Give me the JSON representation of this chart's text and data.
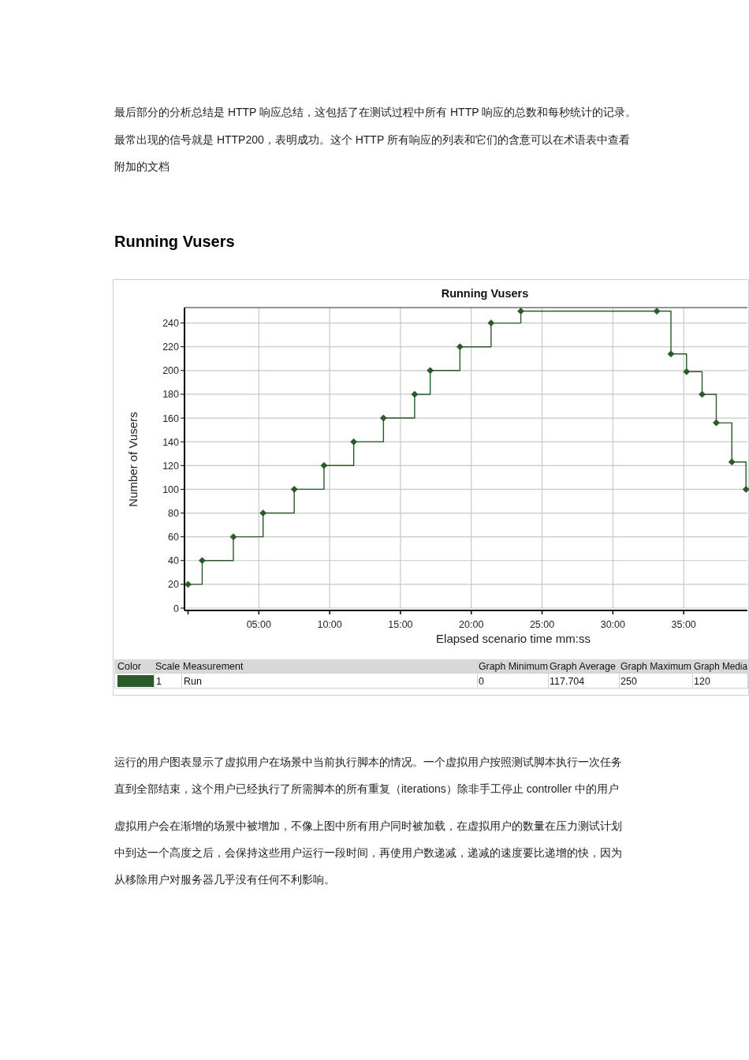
{
  "chart_data": {
    "type": "step",
    "title": "Running Vusers",
    "xlabel": "Elapsed scenario time mm:ss",
    "ylabel": "Number of Vusers",
    "x": [
      0,
      1.0,
      3.2,
      5.3,
      7.5,
      9.6,
      11.7,
      13.8,
      16.0,
      17.1,
      19.2,
      21.4,
      23.5,
      33.1,
      34.1,
      35.2,
      36.3,
      37.3,
      38.4,
      39.4
    ],
    "series": [
      {
        "name": "Run",
        "color": "#2a5a2a",
        "values": [
          20,
          40,
          60,
          80,
          100,
          120,
          140,
          160,
          180,
          200,
          220,
          240,
          250,
          250,
          214,
          199,
          180,
          156,
          123,
          100
        ]
      }
    ],
    "xlim": [
      -0.25,
      39.5
    ],
    "ylim": [
      0,
      253
    ],
    "xticks": [
      {
        "value": 0,
        "label": null
      },
      {
        "value": 5,
        "label": "05:00"
      },
      {
        "value": 10,
        "label": "10:00"
      },
      {
        "value": 15,
        "label": "15:00"
      },
      {
        "value": 20,
        "label": "20:00"
      },
      {
        "value": 25,
        "label": "25:00"
      },
      {
        "value": 30,
        "label": "30:00"
      },
      {
        "value": 35,
        "label": "35:00"
      }
    ],
    "yticks": [
      0,
      20,
      40,
      60,
      80,
      100,
      120,
      140,
      160,
      180,
      200,
      220,
      240
    ],
    "grid": true,
    "legend": "bottom",
    "marker": "diamond",
    "line_style": "solid",
    "annotations": [
      "最后部分的分析总结是 HTTP 响应总结，这包括了在测试过程中所有 HTTP 响应的总数和每秒统计的记录。",
      "最常出现的信号就是 HTTP200，表明成功。这个 HTTP 所有响应的列表和它们的含意可以在术语表中查看",
      "附加的文档",
      "Running Vusers",
      "Color",
      "Scale",
      "Measurement",
      "Graph Minimum",
      "Graph Average",
      "Graph Maximum",
      "Graph Media",
      "1",
      "0",
      "117.704",
      "250",
      "120",
      "运行的用户图表显示了虚拟用户在场景中当前执行脚本的情况。一个虚拟用户按照测试脚本执行一次任务",
      "直到全部结束，这个用户已经执行了所需脚本的所有重复（iterations）除非手工停止 controller 中的用户",
      "虚拟用户会在渐增的场景中被增加，不像上图中所有用户同时被加载，在虚拟用户的数量在压力测试计划",
      "中到达一个高度之后，会保持这些用户运行一段时间，再使用户数递减，递减的速度要比递增的快，因为",
      "从移除用户对服务器几乎没有任何不利影响。"
    ]
  }
}
